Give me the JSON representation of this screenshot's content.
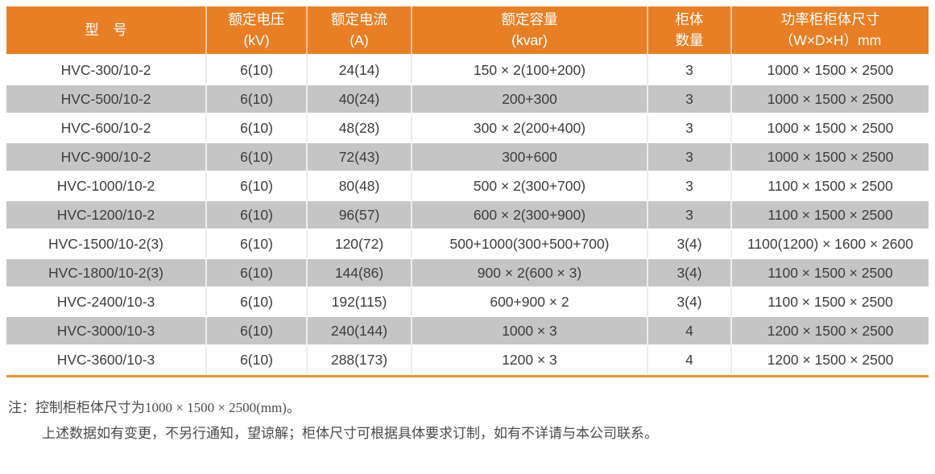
{
  "table": {
    "columns": [
      {
        "id": "model",
        "line1": "型　号",
        "line2": ""
      },
      {
        "id": "voltage",
        "line1": "额定电压",
        "line2": "(kV)"
      },
      {
        "id": "current",
        "line1": "额定电流",
        "line2": "(A)"
      },
      {
        "id": "capacity",
        "line1": "额定容量",
        "line2": "(kvar)"
      },
      {
        "id": "cabinets",
        "line1": "柜体",
        "line2": "数量"
      },
      {
        "id": "dimensions",
        "line1": "功率柜柜体尺寸",
        "line2": "（W×D×H）mm"
      }
    ],
    "rows": [
      [
        "HVC-300/10-2",
        "6(10)",
        "24(14)",
        "150 × 2(100+200)",
        "3",
        "1000 × 1500 × 2500"
      ],
      [
        "HVC-500/10-2",
        "6(10)",
        "40(24)",
        "200+300",
        "3",
        "1000 × 1500 × 2500"
      ],
      [
        "HVC-600/10-2",
        "6(10)",
        "48(28)",
        "300 × 2(200+400)",
        "3",
        "1000 × 1500 × 2500"
      ],
      [
        "HVC-900/10-2",
        "6(10)",
        "72(43)",
        "300+600",
        "3",
        "1000 × 1500 × 2500"
      ],
      [
        "HVC-1000/10-2",
        "6(10)",
        "80(48)",
        "500 × 2(300+700)",
        "3",
        "1100 × 1500 × 2500"
      ],
      [
        "HVC-1200/10-2",
        "6(10)",
        "96(57)",
        "600 × 2(300+900)",
        "3",
        "1100 × 1500 × 2500"
      ],
      [
        "HVC-1500/10-2(3)",
        "6(10)",
        "120(72)",
        "500+1000(300+500+700)",
        "3(4)",
        "1100(1200) × 1600 × 2600"
      ],
      [
        "HVC-1800/10-2(3)",
        "6(10)",
        "144(86)",
        "900 × 2(600 × 3)",
        "3(4)",
        "1100 × 1500 × 2500"
      ],
      [
        "HVC-2400/10-3",
        "6(10)",
        "192(115)",
        "600+900 × 2",
        "3(4)",
        "1100 × 1500 × 2500"
      ],
      [
        "HVC-3000/10-3",
        "6(10)",
        "240(144)",
        "1000 × 3",
        "4",
        "1200 × 1500 × 2500"
      ],
      [
        "HVC-3600/10-3",
        "6(10)",
        "288(173)",
        "1200 × 3",
        "4",
        "1200 × 1500 × 2500"
      ]
    ]
  },
  "notes": {
    "label": "注：",
    "line1": "控制柜柜体尺寸为1000 × 1500 × 2500(mm)。",
    "line2": "上述数据如有变更，不另行通知，望谅解；柜体尺寸可根据具体要求订制，如有不详请与本公司联系。"
  },
  "colors": {
    "header_bg": "#E87F25",
    "row_alt": "#C5C5C5",
    "accent": "#E8932E",
    "text": "#3D3D3D",
    "divider": "#ECECEC",
    "note_text": "#4A4A4A"
  }
}
